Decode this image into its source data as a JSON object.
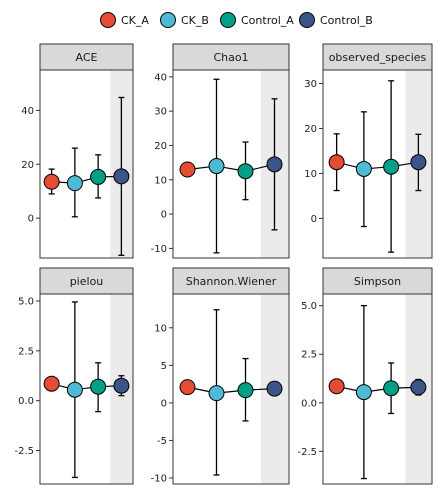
{
  "colors": {
    "CK_A": "#E64B35",
    "CK_B": "#4DBBD5",
    "Control_A": "#00A087",
    "Control_B": "#3C5488",
    "strip_fill": "#D9D9D9",
    "highlight_fill": "#EBEBEB",
    "line": "#000000"
  },
  "legend": {
    "items": [
      {
        "label": "CK_A",
        "color_key": "CK_A"
      },
      {
        "label": "CK_B",
        "color_key": "CK_B"
      },
      {
        "label": "Control_A",
        "color_key": "Control_A"
      },
      {
        "label": "Control_B",
        "color_key": "Control_B"
      }
    ]
  },
  "chart_data": [
    {
      "type": "line",
      "title": "ACE",
      "categories": [
        "CK_A",
        "CK_B",
        "Control_A",
        "Control_B"
      ],
      "values": [
        13.5,
        13.0,
        15.3,
        15.5
      ],
      "error_low": [
        9.0,
        0.5,
        7.5,
        -13.8
      ],
      "error_high": [
        18.2,
        26.0,
        23.5,
        44.8
      ],
      "ylim": [
        -14.8,
        55
      ],
      "yticks": [
        0,
        20,
        40
      ],
      "highlight_category": "Control_B"
    },
    {
      "type": "line",
      "title": "Chao1",
      "categories": [
        "CK_A",
        "CK_B",
        "Control_A",
        "Control_B"
      ],
      "values": [
        13.0,
        14.0,
        12.5,
        14.5
      ],
      "error_low": [
        13.0,
        -11.3,
        4.2,
        -4.6
      ],
      "error_high": [
        13.0,
        39.3,
        21.0,
        33.6
      ],
      "ylim": [
        -12.8,
        42
      ],
      "yticks": [
        -10,
        0,
        10,
        20,
        30,
        40
      ],
      "highlight_category": "Control_B"
    },
    {
      "type": "line",
      "title": "observed_species",
      "categories": [
        "CK_A",
        "CK_B",
        "Control_A",
        "Control_B"
      ],
      "values": [
        12.5,
        11.0,
        11.5,
        12.5
      ],
      "error_low": [
        6.2,
        -1.8,
        -7.5,
        6.2
      ],
      "error_high": [
        18.8,
        23.7,
        30.6,
        18.7
      ],
      "ylim": [
        -8.8,
        33
      ],
      "yticks": [
        0,
        10,
        20,
        30
      ],
      "highlight_category": "Control_B"
    },
    {
      "type": "line",
      "title": "pielou",
      "categories": [
        "CK_A",
        "CK_B",
        "Control_A",
        "Control_B"
      ],
      "values": [
        0.85,
        0.55,
        0.7,
        0.75
      ],
      "error_low": [
        0.85,
        -3.85,
        -0.55,
        0.25
      ],
      "error_high": [
        0.85,
        4.95,
        1.9,
        1.25
      ],
      "ylim": [
        -4.18,
        5.35
      ],
      "yticks": [
        -2.5,
        0.0,
        2.5,
        5.0
      ],
      "highlight_category": "Control_B"
    },
    {
      "type": "line",
      "title": "Shannon.Wiener",
      "categories": [
        "CK_A",
        "CK_B",
        "Control_A",
        "Control_B"
      ],
      "values": [
        2.1,
        1.3,
        1.7,
        1.9
      ],
      "error_low": [
        1.2,
        -9.6,
        -2.4,
        1.0
      ],
      "error_high": [
        3.0,
        12.4,
        5.9,
        2.8
      ],
      "ylim": [
        -10.8,
        14.5
      ],
      "yticks": [
        -10,
        -5,
        0,
        5,
        10
      ],
      "highlight_category": "Control_B"
    },
    {
      "type": "line",
      "title": "Simpson",
      "categories": [
        "CK_A",
        "CK_B",
        "Control_A",
        "Control_B"
      ],
      "values": [
        0.85,
        0.55,
        0.75,
        0.8
      ],
      "error_low": [
        0.85,
        -3.9,
        -0.55,
        0.4
      ],
      "error_high": [
        0.85,
        5.0,
        2.05,
        1.2
      ],
      "ylim": [
        -4.18,
        5.6
      ],
      "yticks": [
        -2.5,
        0.0,
        2.5,
        5.0
      ],
      "highlight_category": "Control_B"
    }
  ]
}
